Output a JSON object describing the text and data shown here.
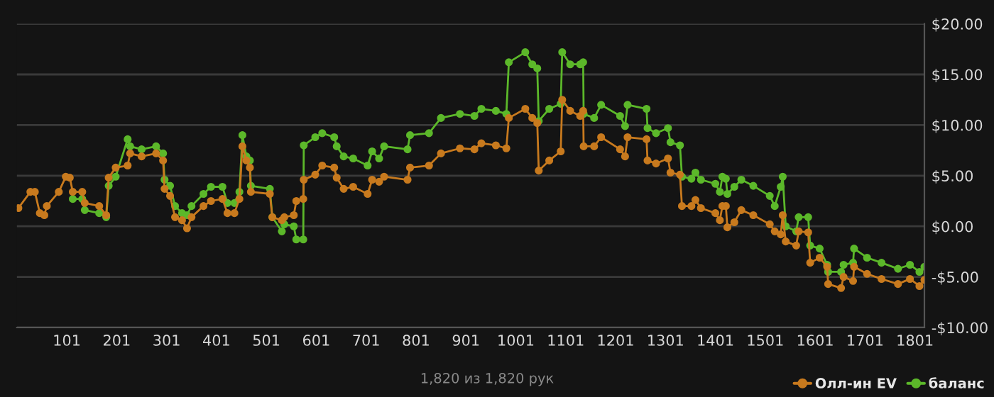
{
  "chart_data": {
    "type": "line",
    "x": [
      4,
      28,
      37,
      47,
      56,
      61,
      85,
      99,
      107,
      113,
      132,
      137,
      166,
      180,
      185,
      199,
      223,
      228,
      251,
      280,
      294,
      297,
      308,
      318,
      332,
      342,
      351,
      375,
      390,
      413,
      423,
      437,
      447,
      453,
      461,
      468,
      470,
      508,
      513,
      532,
      537,
      556,
      561,
      575,
      576,
      599,
      613,
      637,
      642,
      656,
      675,
      704,
      713,
      727,
      737,
      784,
      789,
      827,
      851,
      889,
      918,
      932,
      961,
      982,
      987,
      1020,
      1034,
      1044,
      1047,
      1068,
      1091,
      1094,
      1110,
      1130,
      1136,
      1137,
      1158,
      1172,
      1210,
      1220,
      1225,
      1263,
      1265,
      1282,
      1306,
      1311,
      1330,
      1334,
      1353,
      1361,
      1372,
      1401,
      1410,
      1415,
      1422,
      1425,
      1439,
      1453,
      1477,
      1510,
      1520,
      1532,
      1536,
      1542,
      1563,
      1568,
      1587,
      1591,
      1610,
      1625,
      1627,
      1653,
      1658,
      1677,
      1679,
      1705,
      1734,
      1767,
      1791,
      1810,
      1820
    ],
    "series": [
      {
        "name": "Олл-ин EV",
        "color": "#c87a1e",
        "values": [
          1.8,
          3.4,
          3.4,
          1.3,
          1.1,
          2.0,
          3.4,
          4.9,
          4.8,
          3.4,
          3.4,
          2.3,
          2.0,
          1.1,
          4.8,
          5.8,
          6.0,
          7.2,
          6.9,
          7.2,
          6.5,
          3.7,
          3.0,
          0.9,
          0.6,
          -0.2,
          0.9,
          2.0,
          2.5,
          2.7,
          1.3,
          1.3,
          2.7,
          7.9,
          6.5,
          5.8,
          3.4,
          3.2,
          0.9,
          0.6,
          0.9,
          1.1,
          2.5,
          2.7,
          4.6,
          5.1,
          6.0,
          5.8,
          4.8,
          3.7,
          3.9,
          3.2,
          4.6,
          4.4,
          4.9,
          4.6,
          5.8,
          6.0,
          7.2,
          7.7,
          7.6,
          8.2,
          8.0,
          7.7,
          10.7,
          11.6,
          10.7,
          10.2,
          5.5,
          6.5,
          7.4,
          12.5,
          11.4,
          10.9,
          11.4,
          7.9,
          7.9,
          8.8,
          7.6,
          6.9,
          8.8,
          8.6,
          6.5,
          6.2,
          6.7,
          5.3,
          5.1,
          2.0,
          2.0,
          2.6,
          1.8,
          1.3,
          0.6,
          2.0,
          2.0,
          -0.1,
          0.4,
          1.6,
          1.1,
          0.2,
          -0.5,
          -0.8,
          1.1,
          -1.5,
          -1.9,
          -0.5,
          -0.6,
          -3.6,
          -3.1,
          -4.0,
          -5.7,
          -6.1,
          -5.0,
          -5.4,
          -4.0,
          -4.7,
          -5.2,
          -5.7,
          -5.2,
          -5.9,
          -5.3
        ]
      },
      {
        "name": "баланс",
        "color": "#5cb82a",
        "values": [
          null,
          null,
          null,
          null,
          null,
          null,
          null,
          null,
          null,
          2.7,
          2.7,
          1.6,
          1.3,
          0.9,
          4.0,
          4.9,
          8.6,
          7.9,
          7.6,
          7.9,
          7.2,
          4.6,
          4.0,
          2.0,
          1.3,
          1.1,
          2.0,
          3.2,
          3.9,
          3.9,
          2.3,
          2.3,
          3.4,
          9.0,
          6.9,
          6.5,
          4.0,
          3.7,
          0.9,
          -0.5,
          0.2,
          0.0,
          -1.3,
          -1.3,
          8.0,
          8.8,
          9.2,
          8.8,
          7.9,
          6.9,
          6.7,
          6.0,
          7.4,
          6.7,
          7.9,
          7.6,
          9.0,
          9.2,
          10.7,
          11.1,
          10.9,
          11.6,
          11.4,
          11.1,
          16.2,
          17.2,
          16.0,
          15.6,
          10.4,
          11.6,
          12.1,
          17.2,
          16.0,
          16.0,
          16.2,
          11.1,
          10.7,
          12.0,
          10.9,
          9.9,
          12.0,
          11.6,
          9.7,
          9.2,
          9.7,
          8.3,
          8.0,
          4.9,
          4.7,
          5.3,
          4.6,
          4.2,
          3.4,
          4.9,
          4.7,
          3.2,
          3.9,
          4.6,
          4.0,
          3.0,
          2.0,
          3.9,
          4.9,
          0.0,
          -0.5,
          0.9,
          0.9,
          -1.9,
          -2.2,
          -3.8,
          -4.5,
          -4.5,
          -3.8,
          -3.6,
          -2.2,
          -3.1,
          -3.6,
          -4.2,
          -3.8,
          -4.5,
          -4.0
        ]
      }
    ],
    "xlim": [
      1,
      1820
    ],
    "xticks": [
      101,
      201,
      301,
      401,
      501,
      601,
      701,
      801,
      901,
      1001,
      1101,
      1201,
      1301,
      1401,
      1501,
      1601,
      1701,
      1801
    ],
    "ylim": [
      -10,
      20
    ],
    "yticks": [
      {
        "value": -10,
        "label": "-$10.00"
      },
      {
        "value": -5,
        "label": "-$5.00"
      },
      {
        "value": 0,
        "label": "$0.00"
      },
      {
        "value": 5,
        "label": "$5.00"
      },
      {
        "value": 10,
        "label": "$10.00"
      },
      {
        "value": 15,
        "label": "$15.00"
      },
      {
        "value": 20,
        "label": "$20.00"
      }
    ],
    "grid": "y",
    "marker": "circle",
    "line_style": "solid",
    "legend": "bottom right",
    "annotations": [
      "1,820 из 1,820 рук"
    ]
  }
}
